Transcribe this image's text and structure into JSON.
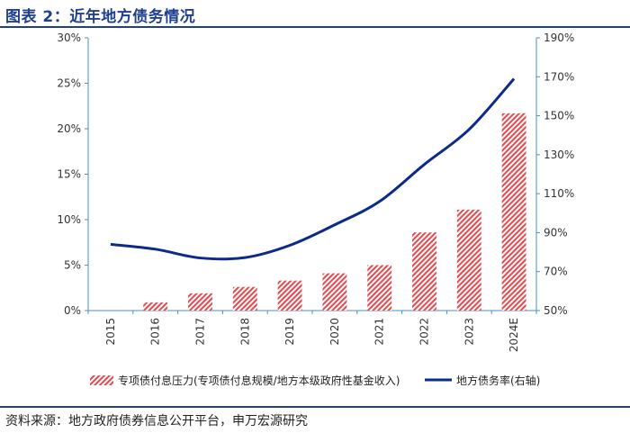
{
  "title": "图表 2：近年地方债务情况",
  "source": "资料来源：地方政府债券信息公开平台，申万宏源研究",
  "colors": {
    "bar": "#e8474c",
    "line": "#0b2a8a",
    "axis": "#4a90c8",
    "accent": "#1f3f8f"
  },
  "chart_data": {
    "type": "bar",
    "categories": [
      "2015",
      "2016",
      "2017",
      "2018",
      "2019",
      "2020",
      "2021",
      "2022",
      "2023",
      "2024E"
    ],
    "series": [
      {
        "name": "专项债付息压力(专项债付息规模/地方本级政府性基金收入)",
        "type": "bar",
        "axis": "left",
        "values": [
          0.0,
          0.9,
          1.9,
          2.6,
          3.3,
          4.1,
          5.0,
          8.6,
          11.1,
          21.7
        ]
      },
      {
        "name": "地方债务率(右轴)",
        "type": "line",
        "axis": "right",
        "values": [
          84,
          81.5,
          77,
          77.2,
          83.5,
          94,
          106,
          125,
          143,
          169
        ]
      }
    ],
    "y_left": {
      "ticks": [
        "0%",
        "5%",
        "10%",
        "15%",
        "20%",
        "25%",
        "30%"
      ],
      "ylim": [
        0,
        30
      ]
    },
    "y_right": {
      "ticks": [
        "50%",
        "70%",
        "90%",
        "110%",
        "130%",
        "150%",
        "170%",
        "190%"
      ],
      "ylim": [
        50,
        190
      ]
    },
    "legend": "bottom"
  }
}
